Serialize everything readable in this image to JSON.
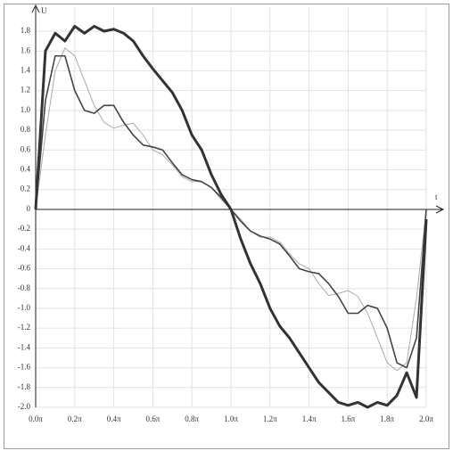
{
  "chart_data": {
    "type": "line",
    "ylabel": "U",
    "xlabel": "t",
    "x": [
      0,
      0.05,
      0.1,
      0.15,
      0.2,
      0.25,
      0.3,
      0.35,
      0.4,
      0.45,
      0.5,
      0.55,
      0.6,
      0.65,
      0.7,
      0.75,
      0.8,
      0.85,
      0.9,
      0.95,
      1.0,
      1.05,
      1.1,
      1.15,
      1.2,
      1.25,
      1.3,
      1.35,
      1.4,
      1.45,
      1.5,
      1.55,
      1.6,
      1.65,
      1.7,
      1.75,
      1.8,
      1.85,
      1.9,
      1.95,
      2.0
    ],
    "xlim": [
      0,
      2.0
    ],
    "xticks": [
      {
        "value": 0,
        "label": "0.0π"
      },
      {
        "value": 0.2,
        "label": "0.2π"
      },
      {
        "value": 0.4,
        "label": "0.4π"
      },
      {
        "value": 0.6,
        "label": "0.6π"
      },
      {
        "value": 0.8,
        "label": "0.8π"
      },
      {
        "value": 1.0,
        "label": "1.0π"
      },
      {
        "value": 1.2,
        "label": "1.2π"
      },
      {
        "value": 1.4,
        "label": "1.4π"
      },
      {
        "value": 1.6,
        "label": "1.6π"
      },
      {
        "value": 1.8,
        "label": "1.8π"
      },
      {
        "value": 2.0,
        "label": "2.0π"
      }
    ],
    "ylim": [
      -2.0,
      1.8
    ],
    "yticks": [
      1.8,
      1.6,
      1.4,
      1.2,
      {
        "value": 1.0,
        "label": "1.0"
      },
      0.8,
      0.6,
      0.4,
      0.2,
      0,
      -0.2,
      -0.4,
      -0.6,
      -0.8,
      {
        "value": -1.0,
        "label": "-1.0"
      },
      -1.2,
      -1.4,
      -1.6,
      -1.8,
      {
        "value": -2.0,
        "label": "-2.0"
      }
    ],
    "grid": true,
    "series": [
      {
        "color": "#aaaaaa",
        "line_width": 1,
        "values": [
          0,
          0.75,
          1.4,
          1.63,
          1.55,
          1.3,
          1.05,
          0.88,
          0.82,
          0.85,
          0.87,
          0.75,
          0.6,
          0.55,
          0.45,
          0.33,
          0.28,
          0.28,
          0.22,
          0.1,
          0,
          -0.1,
          -0.22,
          -0.28,
          -0.28,
          -0.33,
          -0.45,
          -0.55,
          -0.6,
          -0.75,
          -0.87,
          -0.85,
          -0.82,
          -0.88,
          -1.05,
          -1.3,
          -1.55,
          -1.63,
          -1.55,
          -0.9,
          0
        ]
      },
      {
        "color": "#444444",
        "line_width": 1.6,
        "values": [
          0,
          1.1,
          1.55,
          1.55,
          1.2,
          1.0,
          0.97,
          1.05,
          1.05,
          0.88,
          0.75,
          0.65,
          0.63,
          0.6,
          0.47,
          0.35,
          0.3,
          0.28,
          0.22,
          0.12,
          0,
          -0.12,
          -0.22,
          -0.27,
          -0.3,
          -0.35,
          -0.47,
          -0.6,
          -0.63,
          -0.65,
          -0.75,
          -0.88,
          -1.05,
          -1.05,
          -0.97,
          -1.0,
          -1.2,
          -1.55,
          -1.6,
          -1.3,
          0
        ]
      },
      {
        "color": "#333333",
        "line_width": 3,
        "values": [
          0,
          1.6,
          1.78,
          1.7,
          1.85,
          1.78,
          1.85,
          1.8,
          1.82,
          1.78,
          1.7,
          1.55,
          1.42,
          1.3,
          1.18,
          1.0,
          0.75,
          0.6,
          0.35,
          0.15,
          0,
          -0.3,
          -0.55,
          -0.75,
          -1.0,
          -1.18,
          -1.3,
          -1.45,
          -1.6,
          -1.75,
          -1.85,
          -1.95,
          -1.98,
          -1.95,
          -2.0,
          -1.95,
          -1.98,
          -1.88,
          -1.65,
          -1.9,
          -0.1
        ]
      }
    ]
  }
}
